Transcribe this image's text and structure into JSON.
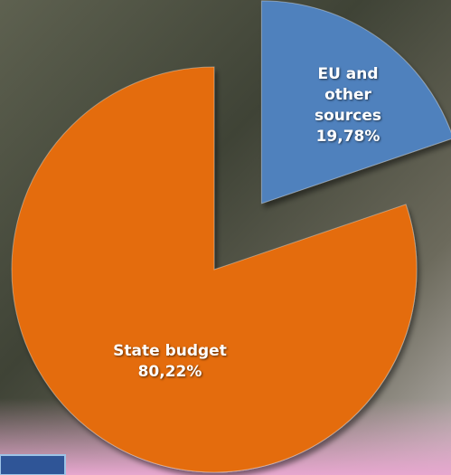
{
  "chart_data": {
    "type": "pie",
    "categories": [
      "EU and other sources",
      "State budget"
    ],
    "values": [
      19.78,
      80.22
    ],
    "value_labels": [
      "19,78%",
      "80,22%"
    ],
    "colors": [
      "#4f81bd",
      "#e46c0a"
    ]
  }
}
